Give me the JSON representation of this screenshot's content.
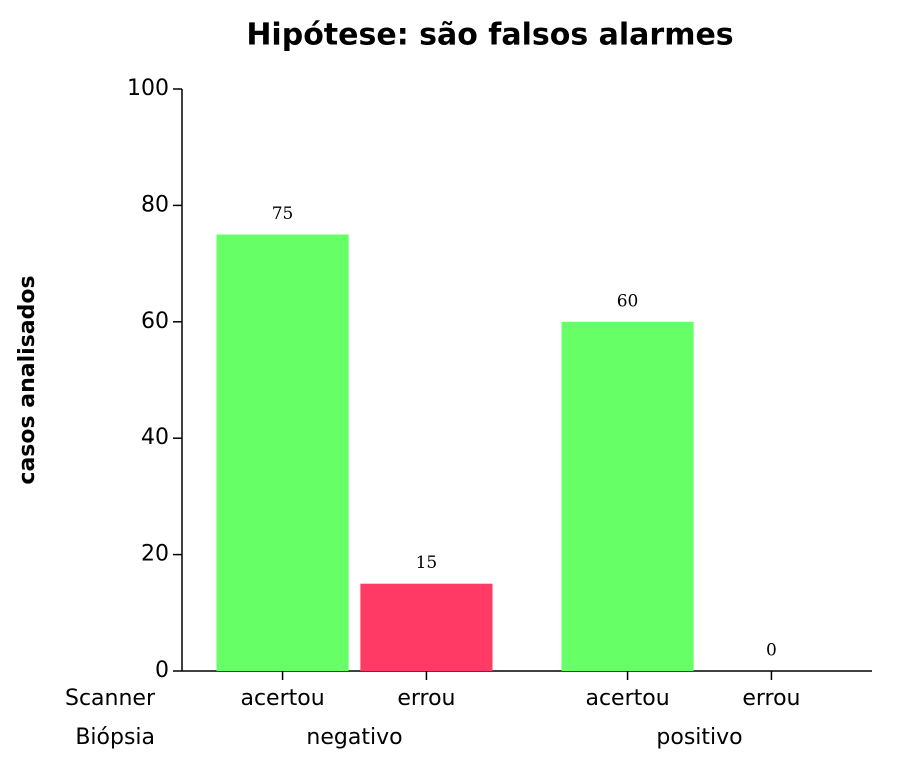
{
  "chart_data": {
    "type": "bar",
    "title": "Hipótese: são falsos alarmes",
    "y_label": "casos analisados",
    "level_names": [
      "Scanner",
      "Biópsia"
    ],
    "categories": [
      "acertou",
      "errou",
      "acertou",
      "errou"
    ],
    "groups": [
      "negativo",
      "positivo"
    ],
    "values": [
      75,
      15,
      60,
      0
    ],
    "colors": [
      "#66ff66",
      "#ff3a64",
      "#66ff66",
      "#ff3a64"
    ],
    "ylim": [
      0,
      100
    ],
    "yticks": [
      0,
      20,
      40,
      60,
      80,
      100
    ],
    "grid": false
  }
}
